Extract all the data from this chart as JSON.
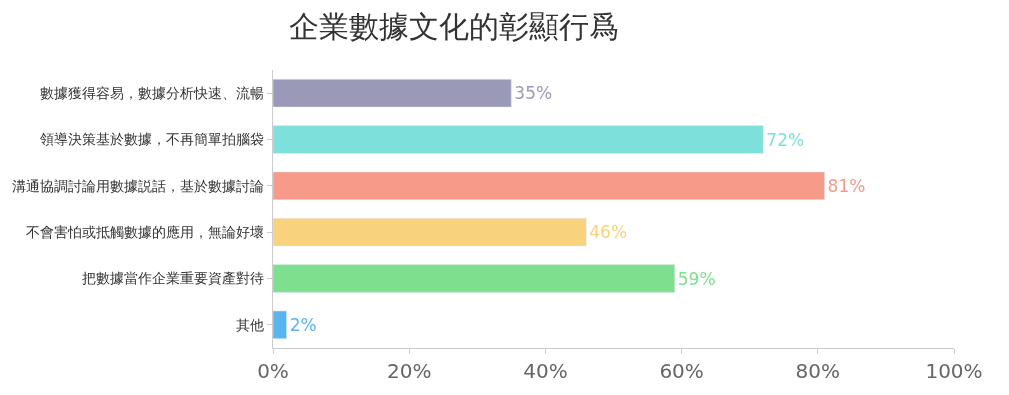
{
  "chart_data": {
    "type": "bar",
    "orientation": "horizontal",
    "title": "企業數據文化的彰顯行爲",
    "categories": [
      "數據獲得容易，數據分析快速、流暢",
      "領導決策基於數據，不再簡單拍腦袋",
      "溝通協調討論用數據説話，基於數據討論",
      "不會害怕或抵觸數據的應用，無論好壞",
      "把數據當作企業重要資產對待",
      "其他"
    ],
    "values": [
      35,
      72,
      81,
      46,
      59,
      2
    ],
    "value_labels": [
      "35%",
      "72%",
      "81%",
      "46%",
      "59%",
      "2%"
    ],
    "colors": [
      "#9a9ab8",
      "#7ee0da",
      "#f79a8a",
      "#f9d27e",
      "#7ee08e",
      "#5ab4f0"
    ],
    "xlim": [
      0,
      100
    ],
    "xticks": [
      {
        "value": 0,
        "label": "0%"
      },
      {
        "value": 20,
        "label": "20%"
      },
      {
        "value": 40,
        "label": "40%"
      },
      {
        "value": 60,
        "label": "60%"
      },
      {
        "value": 80,
        "label": "80%"
      },
      {
        "value": 100,
        "label": "100%"
      }
    ]
  }
}
